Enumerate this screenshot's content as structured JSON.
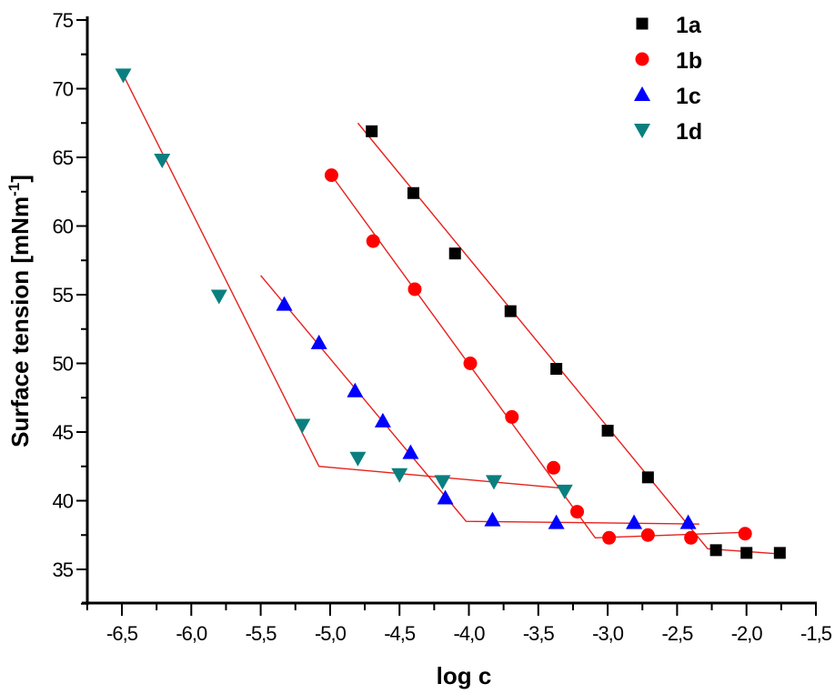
{
  "chart_data": {
    "type": "scatter",
    "title": "",
    "xlabel": "log c",
    "ylabel": "Surface tension [mNm",
    "ylabel_superscript": "-1",
    "ylabel_suffix": "]",
    "xlim": [
      -6.75,
      -1.5
    ],
    "ylim": [
      32,
      75
    ],
    "x_ticks": [
      -6.5,
      -6.0,
      -5.5,
      -5.0,
      -4.5,
      -4.0,
      -3.5,
      -3.0,
      -2.5,
      -2.0,
      -1.5
    ],
    "x_tick_labels": [
      "-6,5",
      "-6,0",
      "-5,5",
      "-5,0",
      "-4,5",
      "-4,0",
      "-3,5",
      "-3,0",
      "-2,5",
      "-2,0",
      "-1,5"
    ],
    "y_ticks": [
      35,
      40,
      45,
      50,
      55,
      60,
      65,
      70,
      75
    ],
    "y_tick_labels": [
      "35",
      "40",
      "45",
      "50",
      "55",
      "60",
      "65",
      "70",
      "75"
    ],
    "grid": false,
    "legend_position": "top-right",
    "fit_line_color": "#e8201c",
    "series": [
      {
        "name": "1a",
        "marker": "square",
        "color": "#000000",
        "x": [
          -4.7,
          -4.4,
          -4.1,
          -3.7,
          -3.37,
          -3.0,
          -2.71,
          -2.22,
          -2.0,
          -1.76
        ],
        "y": [
          66.9,
          62.4,
          58.0,
          53.8,
          49.6,
          45.1,
          41.7,
          36.4,
          36.2,
          36.2
        ],
        "fit": {
          "x": [
            -4.8,
            -2.28,
            -1.72
          ],
          "y": [
            67.5,
            36.5,
            36.1
          ]
        }
      },
      {
        "name": "1b",
        "marker": "circle",
        "color": "#ff0000",
        "x": [
          -4.99,
          -4.69,
          -4.39,
          -3.99,
          -3.69,
          -3.39,
          -3.22,
          -2.99,
          -2.71,
          -2.4,
          -2.01
        ],
        "y": [
          63.7,
          58.9,
          55.4,
          50.0,
          46.1,
          42.4,
          39.2,
          37.3,
          37.5,
          37.3,
          37.6
        ],
        "fit": {
          "x": [
            -4.99,
            -3.09,
            -2.0
          ],
          "y": [
            63.7,
            37.3,
            37.7
          ]
        }
      },
      {
        "name": "1c",
        "marker": "triangle-up",
        "color": "#0000ff",
        "x": [
          -5.33,
          -5.08,
          -4.82,
          -4.62,
          -4.42,
          -4.17,
          -3.83,
          -3.37,
          -2.81,
          -2.42
        ],
        "y": [
          54.3,
          51.5,
          48.0,
          45.8,
          43.5,
          40.2,
          38.6,
          38.4,
          38.4,
          38.4
        ],
        "fit": {
          "x": [
            -5.5,
            -4.02,
            -2.34
          ],
          "y": [
            56.4,
            38.5,
            38.3
          ]
        }
      },
      {
        "name": "1d",
        "marker": "triangle-down",
        "color": "#0b7f7f",
        "x": [
          -6.49,
          -6.21,
          -5.8,
          -5.2,
          -4.8,
          -4.5,
          -4.19,
          -3.82,
          -3.31
        ],
        "y": [
          71.0,
          64.8,
          54.9,
          45.5,
          43.1,
          41.9,
          41.4,
          41.4,
          40.7
        ],
        "fit": {
          "x": [
            -6.49,
            -5.08,
            -3.31
          ],
          "y": [
            71.0,
            42.5,
            40.9
          ]
        }
      }
    ]
  }
}
